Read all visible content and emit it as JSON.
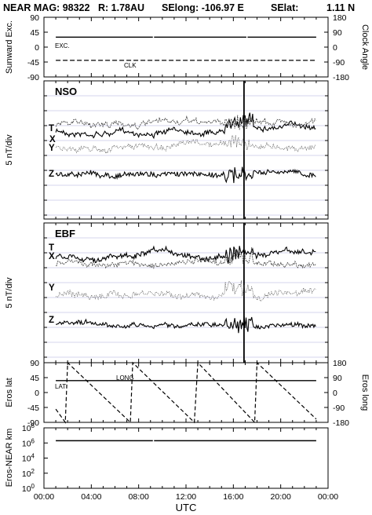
{
  "header": {
    "spacecraft": "NEAR MAG: 98322",
    "distance": "R: 1.78AU",
    "selong": "SElong: -106.97 E",
    "selat_label": "SElat:",
    "selat_value": "1.11 N"
  },
  "chart_data": [
    {
      "type": "line",
      "panel": "angles",
      "ylabel": "Sunward Exc.",
      "y2label": "Clock Angle",
      "yticks": [
        "90",
        "45",
        "0",
        "-45",
        "-90"
      ],
      "y2ticks": [
        "180",
        "90",
        "0",
        "-90",
        "-180"
      ],
      "ylim": [
        -90,
        90
      ],
      "y2lim": [
        -180,
        180
      ],
      "series": [
        {
          "name": "EXC.",
          "style": "solid",
          "x": [
            1.0,
            9.2,
            9.3,
            17.1,
            17.2,
            23.0
          ],
          "y": [
            30,
            30,
            30,
            30,
            30,
            30
          ]
        },
        {
          "name": "CLK",
          "style": "dashed",
          "x": [
            1.0,
            23.0
          ],
          "y2": [
            -80,
            -80
          ]
        }
      ]
    },
    {
      "type": "line",
      "panel": "NSO",
      "title": "NSO",
      "ylabel": "5 nT/div",
      "series": [
        {
          "name": "T"
        },
        {
          "name": "X"
        },
        {
          "name": "Y"
        },
        {
          "name": "Z"
        }
      ],
      "event_time": 16.9
    },
    {
      "type": "line",
      "panel": "EBF",
      "title": "EBF",
      "ylabel": "5 nT/div",
      "series": [
        {
          "name": "T"
        },
        {
          "name": "X"
        },
        {
          "name": "Y"
        },
        {
          "name": "Z"
        }
      ],
      "event_time": 16.9
    },
    {
      "type": "line",
      "panel": "eros",
      "ylabel": "Eros lat",
      "y2label": "Eros long",
      "yticks": [
        "90",
        "45",
        "0",
        "-45",
        "-90"
      ],
      "y2ticks": [
        "180",
        "90",
        "0",
        "-90",
        "-180"
      ],
      "ylim": [
        -90,
        90
      ],
      "y2lim": [
        -180,
        180
      ],
      "series": [
        {
          "name": "LAT",
          "style": "solid",
          "x": [
            1.0,
            23.0
          ],
          "y": [
            36,
            36
          ]
        },
        {
          "name": "LONG",
          "style": "dashed",
          "x": [
            1.0,
            1.8,
            2.0,
            7.3,
            7.5,
            12.7,
            13.0,
            17.8,
            18.0,
            23.0
          ],
          "y2": [
            -100,
            -180,
            180,
            -180,
            180,
            -180,
            180,
            -180,
            180,
            -160
          ]
        }
      ]
    },
    {
      "type": "line",
      "panel": "distance",
      "ylabel": "Eros-NEAR km",
      "yscale": "log",
      "yticks": [
        "10^8",
        "10^6",
        "10^4",
        "10^2",
        "10^0"
      ],
      "ylim": [
        1,
        100000000
      ],
      "series": [
        {
          "name": "distance",
          "x": [
            1.0,
            9.2,
            9.3,
            23.0
          ],
          "y": [
            2000000,
            2000000,
            2000000,
            2000000
          ]
        }
      ]
    }
  ],
  "xaxis": {
    "label": "UTC",
    "ticks": [
      "00:00",
      "04:00",
      "08:00",
      "12:00",
      "16:00",
      "20:00",
      "00:00"
    ],
    "xlim": [
      0,
      24
    ]
  },
  "annotations": {
    "exc": "EXC.",
    "clk": "CLK",
    "lat": "LAT",
    "long": "LONG"
  }
}
